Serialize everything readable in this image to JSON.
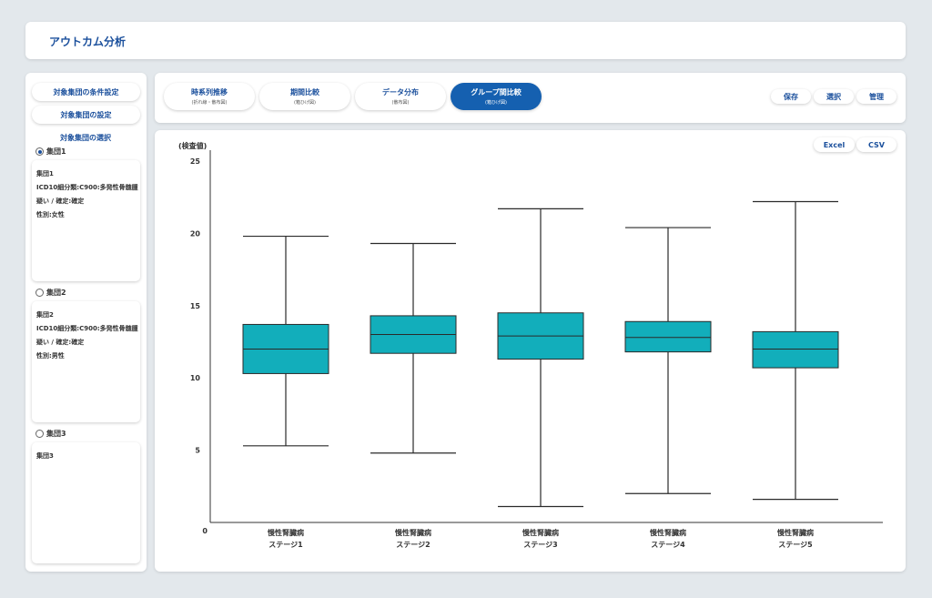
{
  "header": {
    "title": "アウトカム分析"
  },
  "sidebar": {
    "condition_button": "対象集団の条件設定",
    "setting_button": "対象集団の設定",
    "selection_heading": "対象集団の選択",
    "groups": [
      {
        "label": "集団1",
        "selected": true,
        "lines": [
          "集団1",
          "ICD10細分類:C900:多発性骨髄腫",
          "疑い / 確定:確定",
          "性別:女性"
        ]
      },
      {
        "label": "集団2",
        "selected": false,
        "lines": [
          "集団2",
          "ICD10細分類:C900:多発性骨髄腫",
          "疑い / 確定:確定",
          "性別:男性"
        ]
      },
      {
        "label": "集団3",
        "selected": false,
        "lines": [
          "集団3"
        ]
      }
    ]
  },
  "tabs": [
    {
      "label": "時系列推移",
      "sub": "(折れ線・散布図)",
      "active": false
    },
    {
      "label": "期間比較",
      "sub": "(箱ひげ図)",
      "active": false
    },
    {
      "label": "データ分布",
      "sub": "(散布図)",
      "active": false
    },
    {
      "label": "グループ間比較",
      "sub": "(箱ひげ図)",
      "active": true
    }
  ],
  "actions": {
    "save": "保存",
    "select": "選択",
    "manage": "管理"
  },
  "export": {
    "excel": "Excel",
    "csv": "CSV"
  },
  "colors": {
    "accent": "#1560b0",
    "box_fill": "#12aebb",
    "title": "#1a4f9c"
  },
  "chart_data": {
    "type": "box",
    "ylabel": "(検査値)",
    "ylim": [
      0,
      25
    ],
    "yticks": [
      0,
      5,
      10,
      15,
      20,
      25
    ],
    "categories": [
      [
        "慢性腎臓病",
        "ステージ1"
      ],
      [
        "慢性腎臓病",
        "ステージ2"
      ],
      [
        "慢性腎臓病",
        "ステージ3"
      ],
      [
        "慢性腎臓病",
        "ステージ4"
      ],
      [
        "慢性腎臓病",
        "ステージ5"
      ]
    ],
    "boxes": [
      {
        "min": 5.3,
        "q1": 10.3,
        "median": 12.0,
        "q3": 13.7,
        "max": 19.8
      },
      {
        "min": 4.8,
        "q1": 11.7,
        "median": 13.0,
        "q3": 14.3,
        "max": 19.3
      },
      {
        "min": 1.1,
        "q1": 11.3,
        "median": 12.9,
        "q3": 14.5,
        "max": 21.7
      },
      {
        "min": 2.0,
        "q1": 11.8,
        "median": 12.8,
        "q3": 13.9,
        "max": 20.4
      },
      {
        "min": 1.6,
        "q1": 10.7,
        "median": 12.0,
        "q3": 13.2,
        "max": 22.2
      }
    ],
    "grid": false
  }
}
